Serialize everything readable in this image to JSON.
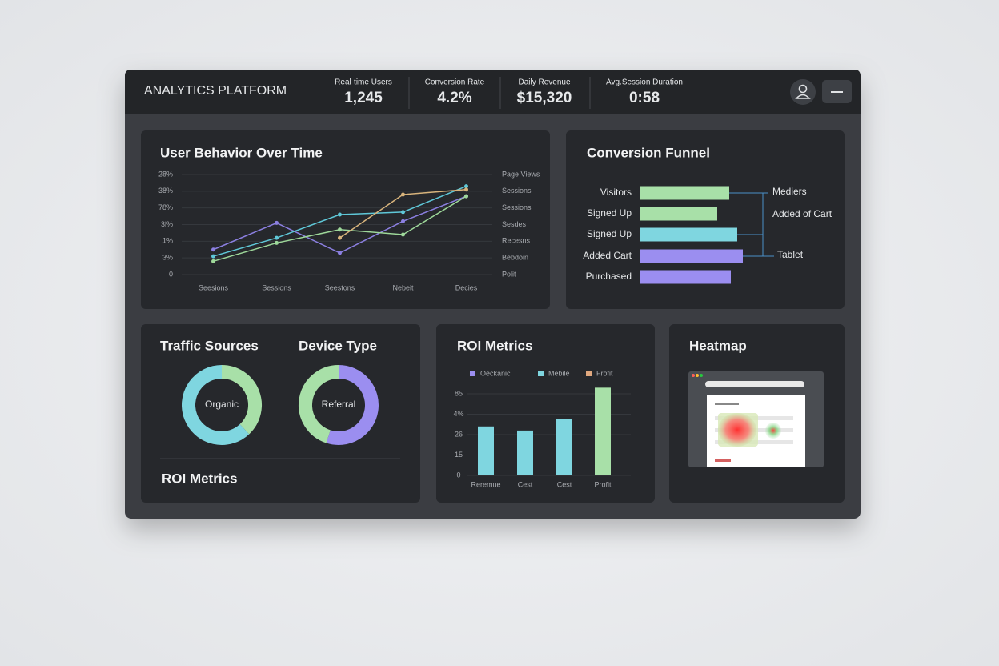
{
  "header": {
    "title": "ANALYTICS PLATFORM",
    "kpis": [
      {
        "label": "Real-time Users",
        "value": "1,245"
      },
      {
        "label": "Conversion Rate",
        "value": "4.2%"
      },
      {
        "label": "Daily Revenue",
        "value": "$15,320"
      },
      {
        "label": "Avg.Session Duration",
        "value": "0:58"
      }
    ]
  },
  "user_behavior": {
    "type": "line",
    "title": "User Behavior Over Time",
    "categories": [
      "Seesions",
      "Sessions",
      "Seestons",
      "Nebeit",
      "Decies"
    ],
    "series": [
      {
        "color": "#8b7fe0",
        "values": [
          1.5,
          3.1,
          1.3,
          3.2,
          4.7
        ]
      },
      {
        "color": "#5fc8d8",
        "values": [
          1.1,
          2.2,
          3.6,
          3.75,
          5.3
        ]
      },
      {
        "color": "#9ed89a",
        "values": [
          0.8,
          1.9,
          2.7,
          2.4,
          4.7
        ]
      },
      {
        "color": "#d8b47c",
        "values": [
          null,
          null,
          2.2,
          4.8,
          5.1
        ]
      }
    ],
    "ylim": [
      0,
      6
    ],
    "yticks": [
      0,
      {
        "value": 1,
        "label": "3%"
      },
      {
        "value": 2,
        "label": "1%"
      },
      {
        "value": 3,
        "label": "3l%"
      },
      {
        "value": 4,
        "label": "78%"
      },
      {
        "value": 5,
        "label": "38%"
      },
      {
        "value": 6,
        "label": "28%"
      }
    ],
    "right_labels": [
      "Page Views",
      "Sessions",
      "Sessions",
      "Sesdes",
      "Recesns",
      "Bebdoin",
      "Polit"
    ],
    "grid": true
  },
  "funnel": {
    "type": "bar",
    "title": "Conversion Funnel",
    "categories": [
      "Visitors",
      "Signed Up",
      "Signed Up",
      "Added Cart",
      "Purchased"
    ],
    "values": [
      112,
      97,
      122,
      129,
      114
    ],
    "colors": [
      "#a8e0a8",
      "#a8e0a8",
      "#7fd6e0",
      "#9b8ef0",
      "#9b8ef0"
    ],
    "xlim": [
      0,
      250
    ],
    "branch_labels": [
      "Mediers",
      "Added of Cart",
      "Tablet"
    ]
  },
  "traffic_sources": {
    "type": "pie",
    "title": "Traffic Sources",
    "center_label": "Organic",
    "values": [
      38,
      62
    ],
    "colors": [
      "#a8e0a8",
      "#7fd6e0"
    ]
  },
  "device_type": {
    "type": "pie",
    "title": "Device Type",
    "center_label": "Referral",
    "values": [
      55,
      45
    ],
    "colors": [
      "#9b8ef0",
      "#a8e0a8"
    ]
  },
  "roi_section_title": "ROI Metrics",
  "roi_metrics": {
    "type": "bar",
    "title": "ROI Metrics",
    "legend": [
      {
        "name": "Oeckanic",
        "color": "#9b8ef0"
      },
      {
        "name": "Mebile",
        "color": "#7fd6e0"
      },
      {
        "name": "Frofit",
        "color": "#e0a87f"
      }
    ],
    "categories": [
      "Reremue",
      "Cest",
      "Cest",
      "Profit"
    ],
    "values": [
      2.4,
      2.2,
      2.75,
      4.3
    ],
    "colors": [
      "#7fd6e0",
      "#7fd6e0",
      "#7fd6e0",
      "#a8e0a8"
    ],
    "ylim": [
      0,
      4.4
    ],
    "yticks": [
      0,
      {
        "value": 1,
        "label": "15"
      },
      {
        "value": 2,
        "label": "26"
      },
      {
        "value": 3,
        "label": "4%"
      },
      {
        "value": 4,
        "label": "85"
      }
    ]
  },
  "heatmap": {
    "title": "Heatmap"
  }
}
